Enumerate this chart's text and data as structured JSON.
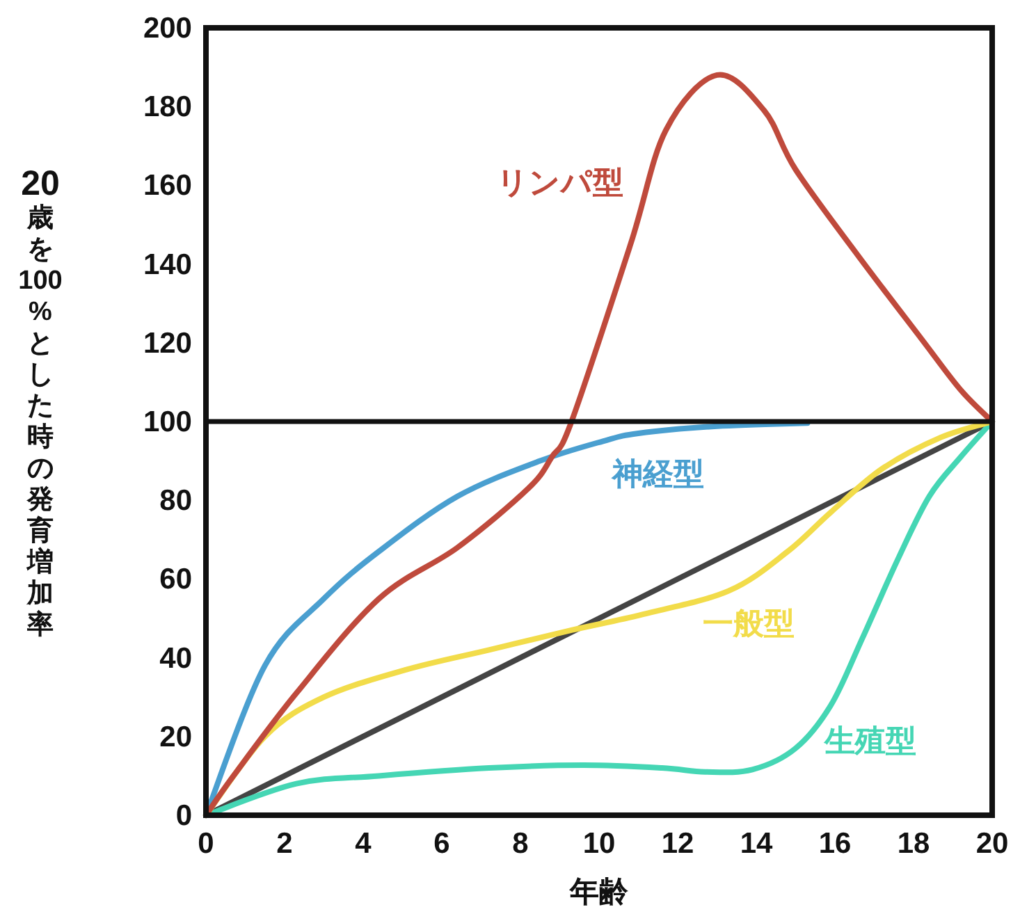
{
  "chart_data": {
    "type": "line",
    "xlabel": "年齢",
    "ylabel": "20歳を100%とした時の発育増加率",
    "xlim": [
      0,
      20
    ],
    "xticks": [
      0,
      2,
      4,
      6,
      8,
      10,
      12,
      14,
      16,
      18,
      20
    ],
    "ylim": [
      0,
      200
    ],
    "yticks": [
      0,
      20,
      40,
      60,
      80,
      100,
      120,
      140,
      160,
      180,
      200
    ],
    "grid": false,
    "ref_lines": [
      {
        "axis": "y",
        "value": 100,
        "color": "#111111"
      }
    ],
    "series": [
      {
        "color": "#444444",
        "x": [
          0,
          20
        ],
        "values": [
          0,
          100
        ]
      },
      {
        "name": "生殖型",
        "color": "#45d6b4",
        "x": [
          0,
          2.3,
          4.4,
          7.2,
          9.6,
          11.6,
          12.7,
          13.9,
          15.0,
          15.9,
          16.7,
          17.6,
          18.4,
          19.2,
          20
        ],
        "values": [
          0,
          8,
          10,
          12,
          12.7,
          12,
          11,
          11.6,
          17,
          28,
          45,
          65,
          81,
          91,
          100
        ]
      },
      {
        "name": "一般型",
        "color": "#f2dc4a",
        "x": [
          0,
          1.5,
          3,
          5.1,
          7.2,
          9.3,
          11.1,
          13.3,
          14.8,
          15.9,
          17.2,
          18.7,
          20
        ],
        "values": [
          0,
          20,
          30,
          37,
          42,
          47,
          51,
          57,
          67,
          77,
          88,
          96,
          100
        ]
      },
      {
        "name": "神経型",
        "color": "#4a9fd0",
        "x": [
          0,
          1.5,
          3,
          4.4,
          6.4,
          8.5,
          10.1,
          11.0,
          13.0,
          15.3
        ],
        "values": [
          0,
          38,
          55,
          67,
          81,
          90,
          95,
          97,
          98.8,
          99.6
        ]
      },
      {
        "name": "リンパ型",
        "color": "#bf4a3c",
        "x": [
          0,
          0.7,
          2.3,
          4.4,
          6.4,
          8.2,
          8.8,
          9.3,
          10.8,
          11.7,
          13.0,
          14.2,
          15.0,
          16.6,
          18.2,
          19.2,
          20
        ],
        "values": [
          0,
          10,
          31,
          55,
          68,
          83,
          91,
          100,
          145,
          174,
          188,
          179,
          164,
          142,
          121,
          108,
          100
        ]
      }
    ]
  }
}
